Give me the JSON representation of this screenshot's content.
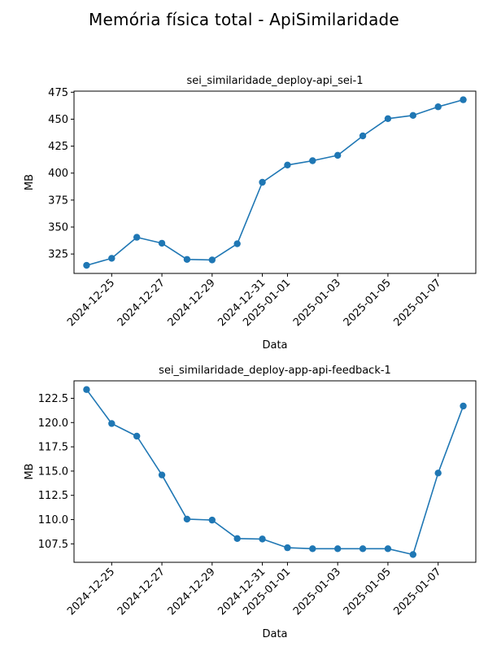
{
  "suptitle": "Memória física total - ApiSimilaridade",
  "chart_data": [
    {
      "type": "line",
      "title": "sei_similaridade_deploy-api_sei-1",
      "xlabel": "Data",
      "ylabel": "MB",
      "x": [
        "2024-12-24",
        "2024-12-25",
        "2024-12-26",
        "2024-12-27",
        "2024-12-28",
        "2024-12-29",
        "2024-12-30",
        "2024-12-31",
        "2025-01-01",
        "2025-01-02",
        "2025-01-03",
        "2025-01-04",
        "2025-01-05",
        "2025-01-06",
        "2025-01-07",
        "2025-01-08"
      ],
      "values": [
        314.5,
        321,
        340.5,
        335,
        320,
        319.5,
        334.5,
        391.5,
        407.5,
        411.5,
        416.5,
        434.5,
        450.5,
        453.5,
        461.5,
        468
      ],
      "xticks": [
        "2024-12-25",
        "2024-12-27",
        "2024-12-29",
        "2024-12-31",
        "2025-01-01",
        "2025-01-03",
        "2025-01-05",
        "2025-01-07"
      ],
      "yticks": [
        325,
        350,
        375,
        400,
        425,
        450,
        475
      ],
      "ytick_labels": [
        "325",
        "350",
        "375",
        "400",
        "425",
        "450",
        "475"
      ],
      "ylim": [
        307,
        476
      ],
      "xlim": [
        "2024-12-23T12:00",
        "2025-01-08T12:00"
      ],
      "color": "#1f77b4",
      "marker": "circle",
      "grid": false
    },
    {
      "type": "line",
      "title": "sei_similaridade_deploy-app-api-feedback-1",
      "xlabel": "Data",
      "ylabel": "MB",
      "x": [
        "2024-12-24",
        "2024-12-25",
        "2024-12-26",
        "2024-12-27",
        "2024-12-28",
        "2024-12-29",
        "2024-12-30",
        "2024-12-31",
        "2025-01-01",
        "2025-01-02",
        "2025-01-03",
        "2025-01-04",
        "2025-01-05",
        "2025-01-06",
        "2025-01-07",
        "2025-01-08"
      ],
      "values": [
        123.4,
        119.9,
        118.6,
        114.6,
        110.05,
        109.95,
        108.05,
        108.0,
        107.1,
        107.0,
        107.0,
        107.0,
        107.0,
        106.4,
        114.8,
        121.7
      ],
      "xticks": [
        "2024-12-25",
        "2024-12-27",
        "2024-12-29",
        "2024-12-31",
        "2025-01-01",
        "2025-01-03",
        "2025-01-05",
        "2025-01-07"
      ],
      "yticks": [
        107.5,
        110.0,
        112.5,
        115.0,
        117.5,
        120.0,
        122.5
      ],
      "ytick_labels": [
        "107.5",
        "110.0",
        "112.5",
        "115.0",
        "117.5",
        "120.0",
        "122.5"
      ],
      "ylim": [
        105.6,
        124.3
      ],
      "xlim": [
        "2024-12-23T12:00",
        "2025-01-08T12:00"
      ],
      "color": "#1f77b4",
      "marker": "circle",
      "grid": false
    }
  ]
}
